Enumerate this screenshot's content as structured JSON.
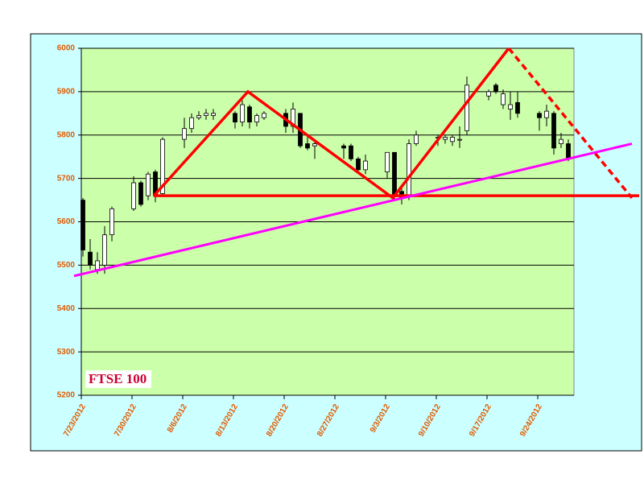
{
  "chart_data": {
    "type": "candlestick",
    "title": "FTSE 100",
    "x": [
      "7/23/2012",
      "7/24/2012",
      "7/25/2012",
      "7/26/2012",
      "7/27/2012",
      "7/30/2012",
      "7/31/2012",
      "8/1/2012",
      "8/2/2012",
      "8/3/2012",
      "8/6/2012",
      "8/7/2012",
      "8/8/2012",
      "8/9/2012",
      "8/10/2012",
      "8/13/2012",
      "8/14/2012",
      "8/15/2012",
      "8/16/2012",
      "8/17/2012",
      "8/20/2012",
      "8/21/2012",
      "8/22/2012",
      "8/23/2012",
      "8/24/2012",
      "8/28/2012",
      "8/29/2012",
      "8/30/2012",
      "8/31/2012",
      "9/3/2012",
      "9/4/2012",
      "9/5/2012",
      "9/6/2012",
      "9/7/2012",
      "9/10/2012",
      "9/11/2012",
      "9/12/2012",
      "9/13/2012",
      "9/14/2012",
      "9/17/2012",
      "9/18/2012",
      "9/19/2012",
      "9/20/2012",
      "9/21/2012",
      "9/24/2012",
      "9/25/2012",
      "9/26/2012",
      "9/27/2012",
      "9/28/2012"
    ],
    "open": [
      5650,
      5530,
      5490,
      5500,
      5570,
      5630,
      5690,
      5660,
      5715,
      5665,
      5790,
      5815,
      5840,
      5845,
      5845,
      5850,
      5830,
      5865,
      5830,
      5840,
      5850,
      5820,
      5850,
      5780,
      5775,
      5775,
      5775,
      5745,
      5720,
      5715,
      5760,
      5670,
      5660,
      5780,
      5795,
      5790,
      5785,
      5790,
      5810,
      5890,
      5915,
      5870,
      5860,
      5875,
      5850,
      5840,
      5850,
      5780,
      5780
    ],
    "high": [
      5655,
      5560,
      5530,
      5590,
      5635,
      5705,
      5695,
      5715,
      5720,
      5795,
      5840,
      5850,
      5855,
      5860,
      5860,
      5855,
      5880,
      5870,
      5850,
      5855,
      5860,
      5875,
      5850,
      5800,
      5790,
      5780,
      5780,
      5750,
      5755,
      5760,
      5760,
      5680,
      5790,
      5810,
      5800,
      5800,
      5800,
      5820,
      5935,
      5905,
      5920,
      5905,
      5900,
      5900,
      5855,
      5870,
      5855,
      5805,
      5790
    ],
    "low": [
      5520,
      5490,
      5480,
      5480,
      5555,
      5625,
      5635,
      5650,
      5645,
      5660,
      5770,
      5805,
      5835,
      5835,
      5835,
      5815,
      5820,
      5815,
      5820,
      5835,
      5805,
      5805,
      5770,
      5765,
      5745,
      5745,
      5740,
      5715,
      5710,
      5700,
      5650,
      5640,
      5650,
      5775,
      5775,
      5780,
      5775,
      5770,
      5800,
      5880,
      5895,
      5860,
      5835,
      5840,
      5810,
      5820,
      5755,
      5770,
      5740
    ],
    "close": [
      5535,
      5500,
      5510,
      5570,
      5630,
      5690,
      5640,
      5710,
      5660,
      5790,
      5815,
      5840,
      5845,
      5850,
      5850,
      5830,
      5870,
      5830,
      5845,
      5850,
      5820,
      5860,
      5775,
      5770,
      5780,
      5770,
      5745,
      5720,
      5740,
      5760,
      5660,
      5655,
      5780,
      5800,
      5795,
      5795,
      5795,
      5790,
      5915,
      5900,
      5900,
      5895,
      5870,
      5850,
      5840,
      5855,
      5770,
      5790,
      5745
    ],
    "xlim": [
      "7/23/2012",
      "9/29/2012"
    ],
    "xticks": [
      "7/23/2012",
      "7/30/2012",
      "8/6/2012",
      "8/13/2012",
      "8/20/2012",
      "8/27/2012",
      "9/3/2012",
      "9/10/2012",
      "9/17/2012",
      "9/24/2012"
    ],
    "ylim": [
      5200,
      6000
    ],
    "yticks": [
      5200,
      5300,
      5400,
      5500,
      5600,
      5700,
      5800,
      5900,
      6000
    ],
    "grid": true,
    "lines": [
      {
        "color": "#ff0000",
        "dash": false,
        "x": [
          "8/2/2012",
          "8/15/2012",
          "9/4/2012",
          "9/20/2012"
        ],
        "y": [
          5660,
          5900,
          5655,
          6000
        ]
      },
      {
        "color": "#ff0000",
        "dash": true,
        "x": [
          "9/20/2012",
          "10/7/2012"
        ],
        "y": [
          6000,
          5655
        ]
      },
      {
        "color": "#ff0000",
        "dash": false,
        "x": [
          "8/2/2012",
          "10/8/2012"
        ],
        "y": [
          5660,
          5660
        ]
      },
      {
        "color": "#ff00ff",
        "dash": false,
        "x": [
          "7/22/2012",
          "10/7/2012"
        ],
        "y": [
          5475,
          5780
        ]
      }
    ]
  }
}
